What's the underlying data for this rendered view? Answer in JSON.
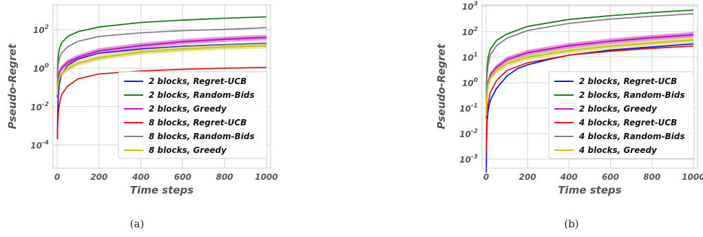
{
  "figure": {
    "captions": [
      "(a)",
      "(b)"
    ]
  },
  "chart_data": [
    {
      "type": "line",
      "xlabel": "Time steps",
      "ylabel": "Pseudo-Regret",
      "xlim": [
        -20,
        1020
      ],
      "ylim_log10": [
        -5.2,
        3.3
      ],
      "yscale": "log",
      "xticks": [
        0,
        200,
        400,
        600,
        800,
        1000
      ],
      "xtick_labels": [
        "0",
        "200",
        "400",
        "600",
        "800",
        "1000"
      ],
      "yticks_log10": [
        -4,
        -2,
        0,
        2
      ],
      "ytick_labels": [
        [
          "10",
          "-4"
        ],
        [
          "10",
          "-2"
        ],
        [
          "10",
          "0"
        ],
        [
          "10",
          "2"
        ]
      ],
      "grid": true,
      "legend_position": "lower-right",
      "series": [
        {
          "name": "2 blocks, Regret-UCB",
          "color": "#1515d6",
          "band": false,
          "x": [
            1,
            2,
            5,
            10,
            20,
            50,
            100,
            200,
            400,
            600,
            800,
            1000
          ],
          "y": [
            0.0002,
            0.002,
            0.03,
            0.15,
            0.45,
            1.4,
            3.0,
            6.0,
            10.0,
            14.0,
            17.0,
            20.0
          ]
        },
        {
          "name": "2 blocks, Random-Bids",
          "color": "#1a7a1a",
          "band": false,
          "x": [
            1,
            2,
            5,
            10,
            20,
            50,
            100,
            200,
            400,
            600,
            800,
            1000
          ],
          "y": [
            0.3,
            1.0,
            4.0,
            10.0,
            20.0,
            45.0,
            80.0,
            140.0,
            240.0,
            320.0,
            400.0,
            470.0
          ]
        },
        {
          "name": "2 blocks, Greedy",
          "color": "#c018c0",
          "band": true,
          "x": [
            1,
            2,
            5,
            10,
            20,
            50,
            100,
            200,
            400,
            600,
            800,
            1000
          ],
          "y": [
            0.03,
            0.1,
            0.3,
            0.6,
            1.0,
            2.0,
            3.7,
            8.0,
            15.0,
            24.0,
            32.0,
            40.0
          ]
        },
        {
          "name": "8 blocks, Regret-UCB",
          "color": "#e01515",
          "band": false,
          "x": [
            1,
            2,
            5,
            10,
            20,
            50,
            100,
            200,
            400,
            600,
            800,
            1000
          ],
          "y": [
            0.0002,
            0.0008,
            0.004,
            0.012,
            0.04,
            0.12,
            0.28,
            0.5,
            0.72,
            0.88,
            1.0,
            1.1
          ]
        },
        {
          "name": "8 blocks, Random-Bids",
          "color": "#808080",
          "band": false,
          "x": [
            1,
            2,
            5,
            10,
            20,
            50,
            100,
            200,
            400,
            600,
            800,
            1000
          ],
          "y": [
            0.1,
            0.4,
            1.5,
            3.0,
            6.0,
            13.0,
            25.0,
            45.0,
            70.0,
            90.0,
            105.0,
            130.0
          ]
        },
        {
          "name": "8 blocks, Greedy",
          "color": "#c4c41c",
          "band": true,
          "x": [
            1,
            2,
            5,
            10,
            20,
            50,
            100,
            200,
            400,
            600,
            800,
            1000
          ],
          "y": [
            0.04,
            0.08,
            0.15,
            0.3,
            0.5,
            1.0,
            1.8,
            3.5,
            7.0,
            10.0,
            13.0,
            15.0
          ]
        }
      ]
    },
    {
      "type": "line",
      "xlabel": "Time steps",
      "ylabel": "Pseudo-Regret",
      "xlim": [
        -20,
        1020
      ],
      "ylim_log10": [
        -3.35,
        3.05
      ],
      "yscale": "log",
      "xticks": [
        0,
        200,
        400,
        600,
        800,
        1000
      ],
      "xtick_labels": [
        "0",
        "200",
        "400",
        "600",
        "800",
        "1000"
      ],
      "yticks_log10": [
        -3,
        -2,
        -1,
        0,
        1,
        2,
        3
      ],
      "ytick_labels": [
        [
          "10",
          "-3"
        ],
        [
          "10",
          "-2"
        ],
        [
          "10",
          "-1"
        ],
        [
          "10",
          "0"
        ],
        [
          "10",
          "1"
        ],
        [
          "10",
          "2"
        ],
        [
          "10",
          "3"
        ]
      ],
      "grid": true,
      "legend_position": "lower-right",
      "series": [
        {
          "name": "2 blocks, Regret-UCB",
          "color": "#1515d6",
          "band": false,
          "x": [
            1,
            2,
            5,
            10,
            20,
            50,
            100,
            150,
            200,
            300,
            400,
            600,
            800,
            1000
          ],
          "y": [
            0.0003,
            0.003,
            0.03,
            0.08,
            0.2,
            0.6,
            1.8,
            3.5,
            5.0,
            8.0,
            12.0,
            19.0,
            25.0,
            33.0
          ]
        },
        {
          "name": "2 blocks, Random-Bids",
          "color": "#1a7a1a",
          "band": false,
          "x": [
            1,
            2,
            5,
            10,
            20,
            50,
            100,
            200,
            400,
            600,
            800,
            1000
          ],
          "y": [
            0.2,
            0.8,
            4.0,
            10.0,
            20.0,
            45.0,
            80.0,
            160.0,
            300.0,
            420.0,
            560.0,
            700.0
          ]
        },
        {
          "name": "2 blocks, Greedy",
          "color": "#c018c0",
          "band": true,
          "x": [
            1,
            2,
            5,
            10,
            20,
            50,
            100,
            200,
            400,
            600,
            800,
            1000
          ],
          "y": [
            0.04,
            0.15,
            0.5,
            1.0,
            2.0,
            4.0,
            8.0,
            15.0,
            28.0,
            42.0,
            58.0,
            75.0
          ]
        },
        {
          "name": "4 blocks, Regret-UCB",
          "color": "#e01515",
          "band": false,
          "x": [
            1,
            2,
            5,
            10,
            20,
            50,
            100,
            200,
            400,
            600,
            800,
            1000
          ],
          "y": [
            0.002,
            0.01,
            0.06,
            0.15,
            0.4,
            1.2,
            3.0,
            6.0,
            12.0,
            17.0,
            22.0,
            27.0
          ]
        },
        {
          "name": "4 blocks, Random-Bids",
          "color": "#808080",
          "band": false,
          "x": [
            1,
            2,
            5,
            10,
            20,
            50,
            100,
            200,
            400,
            600,
            800,
            1000
          ],
          "y": [
            0.1,
            0.5,
            2.0,
            5.0,
            12.0,
            28.0,
            55.0,
            110.0,
            210.0,
            310.0,
            400.0,
            500.0
          ]
        },
        {
          "name": "4 blocks, Greedy",
          "color": "#c4c41c",
          "band": true,
          "x": [
            1,
            2,
            5,
            10,
            20,
            50,
            100,
            200,
            400,
            600,
            800,
            1000
          ],
          "y": [
            0.05,
            0.15,
            0.4,
            0.8,
            1.5,
            3.0,
            5.5,
            10.0,
            18.0,
            27.0,
            36.0,
            47.0
          ]
        }
      ]
    }
  ]
}
